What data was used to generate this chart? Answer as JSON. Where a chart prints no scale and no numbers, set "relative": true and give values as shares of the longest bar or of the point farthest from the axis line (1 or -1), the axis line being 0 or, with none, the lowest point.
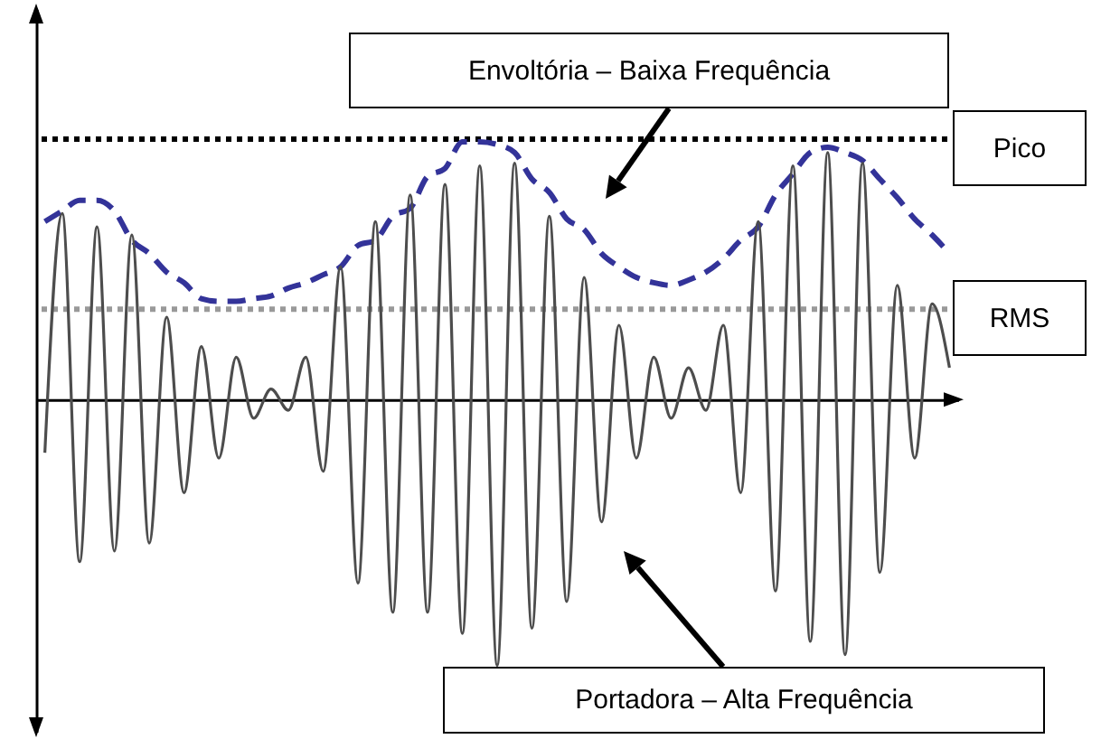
{
  "chart_data": {
    "type": "line",
    "relative": true,
    "categories": [
      null,
      null,
      null,
      null,
      null,
      null,
      null,
      null,
      null,
      null,
      null,
      null,
      null,
      null,
      null,
      null,
      null,
      null,
      null,
      null,
      null,
      null,
      null,
      null,
      null,
      null,
      null,
      null,
      null,
      null,
      null,
      null,
      null,
      null,
      null,
      null,
      null,
      null,
      null,
      null,
      null,
      null,
      null,
      null,
      null,
      null,
      null,
      null,
      null,
      null,
      null,
      null,
      null
    ],
    "series": [
      {
        "name": "Envoltória – Baixa Frequência",
        "color": "#333399",
        "line_style": "dashed",
        "values": [
          0.67,
          0.71,
          0.75,
          0.75,
          0.71,
          0.6,
          0.55,
          0.48,
          0.44,
          0.38,
          0.37,
          0.37,
          0.38,
          0.39,
          0.42,
          0.44,
          0.47,
          0.5,
          0.58,
          0.6,
          0.69,
          0.72,
          0.84,
          0.87,
          0.97,
          0.97,
          0.96,
          0.93,
          0.83,
          0.78,
          0.68,
          0.64,
          0.55,
          0.5,
          0.46,
          0.44,
          0.43,
          0.45,
          0.48,
          0.53,
          0.6,
          0.65,
          0.77,
          0.85,
          0.93,
          0.95,
          0.93,
          0.9,
          0.83,
          0.76,
          0.68,
          0.62,
          0.55
        ]
      },
      {
        "name": "Portadora – Alta Frequência",
        "color": "#4d4d4d",
        "line_style": "solid",
        "values": [
          -0.2,
          0.7,
          -0.61,
          0.65,
          -0.57,
          0.62,
          -0.54,
          0.31,
          -0.35,
          0.2,
          -0.22,
          0.16,
          -0.07,
          0.04,
          -0.04,
          0.16,
          -0.27,
          0.5,
          -0.69,
          0.67,
          -0.8,
          0.77,
          -0.8,
          0.81,
          -0.88,
          0.88,
          -1.0,
          0.89,
          -0.86,
          0.69,
          -0.76,
          0.46,
          -0.46,
          0.28,
          -0.22,
          0.16,
          -0.07,
          0.12,
          -0.04,
          0.28,
          -0.35,
          0.67,
          -0.72,
          0.88,
          -0.91,
          0.93,
          -0.96,
          0.89,
          -0.65,
          0.43,
          -0.22,
          0.36,
          0.12
        ]
      }
    ],
    "ref_lines": [
      {
        "axis": "y",
        "value": 0.98,
        "label": "Pico",
        "color": "#000000",
        "line_style": "dotted"
      },
      {
        "axis": "y",
        "value": 0.34,
        "label": "RMS",
        "color": "#999999",
        "line_style": "dotted"
      }
    ]
  }
}
